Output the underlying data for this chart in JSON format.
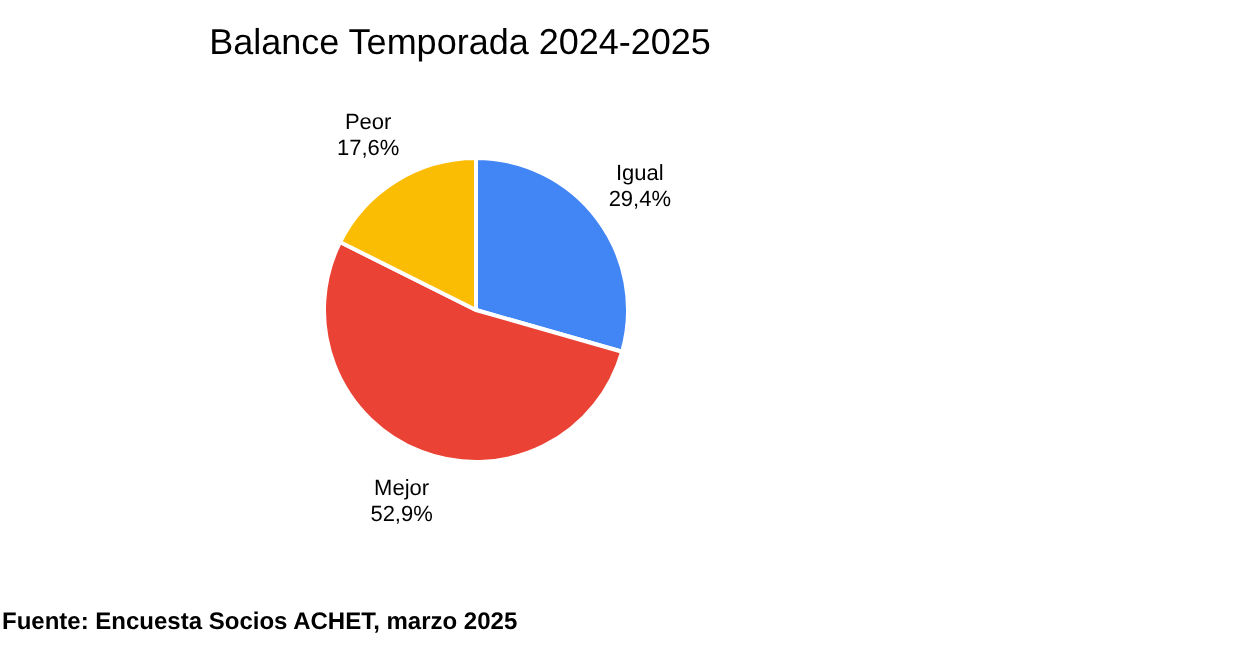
{
  "chart_data": {
    "type": "pie",
    "title": "Balance Temporada 2024-2025",
    "categories": [
      "Igual",
      "Mejor",
      "Peor"
    ],
    "values": [
      29.4,
      52.9,
      17.6
    ],
    "value_labels": [
      "29,4%",
      "52,9%",
      "17,6%"
    ],
    "colors": [
      "#4285f4",
      "#ea4335",
      "#fbbc04"
    ],
    "annotations": [
      "Fuente: Encuesta Socios ACHET, marzo 2025"
    ]
  }
}
